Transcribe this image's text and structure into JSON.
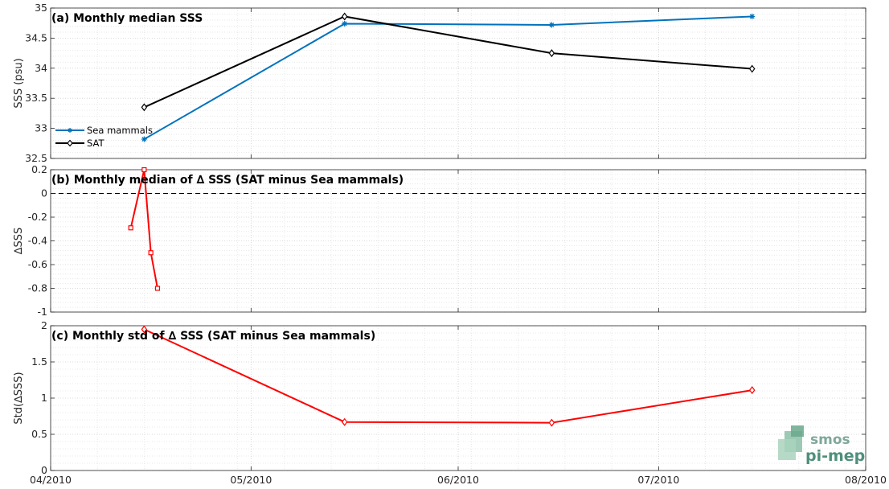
{
  "chart_data": [
    {
      "type": "line",
      "title": "(a) Monthly median SSS",
      "xlabel": "",
      "ylabel": "SSS (psu)",
      "ylim": [
        32.5,
        35
      ],
      "yticks": [
        "32.5",
        "33",
        "33.5",
        "34",
        "34.5",
        "35"
      ],
      "grid": true,
      "legend": "bottom-left",
      "series": [
        {
          "name": "Sea mammals",
          "color": "#0072bd",
          "marker": "star",
          "x": [
            "2010-04-15",
            "2010-05-15",
            "2010-06-15",
            "2010-07-15"
          ],
          "y": [
            32.82,
            34.74,
            34.72,
            34.86
          ]
        },
        {
          "name": "SAT",
          "color": "#000000",
          "marker": "diamond",
          "x": [
            "2010-04-15",
            "2010-05-15",
            "2010-06-15",
            "2010-07-15"
          ],
          "y": [
            33.35,
            34.86,
            34.25,
            33.99
          ]
        }
      ]
    },
    {
      "type": "line",
      "title": "(b) Monthly median of ∆ SSS (SAT minus Sea mammals)",
      "xlabel": "",
      "ylabel": "∆SSS",
      "ylim": [
        -1,
        0.2
      ],
      "yticks": [
        "-1",
        "-0.8",
        "-0.6",
        "-0.4",
        "-0.2",
        "0",
        "0.2"
      ],
      "reference_line": 0,
      "grid": true,
      "series": [
        {
          "color": "#ff0000",
          "marker": "square",
          "x": [
            "2010-04-13",
            "2010-04-15",
            "2010-04-16",
            "2010-04-17"
          ],
          "y": [
            -0.29,
            0.2,
            -0.5,
            -0.8
          ]
        }
      ]
    },
    {
      "type": "line",
      "title": "(c) Monthly std of ∆ SSS (SAT minus Sea mammals)",
      "xlabel": "",
      "ylabel": "Std(∆SSS)",
      "ylim": [
        0,
        2
      ],
      "yticks": [
        "0",
        "0.5",
        "1",
        "1.5",
        "2"
      ],
      "grid": true,
      "series": [
        {
          "color": "#ff0000",
          "marker": "diamond",
          "x": [
            "2010-04-15",
            "2010-05-15",
            "2010-06-15",
            "2010-07-15"
          ],
          "y": [
            1.95,
            0.67,
            0.66,
            1.11
          ]
        }
      ]
    }
  ],
  "xaxis": {
    "range": [
      "2010-04-01",
      "2010-08-01"
    ],
    "ticks": [
      "2010-04-01",
      "2010-05-01",
      "2010-06-01",
      "2010-07-01",
      "2010-08-01"
    ],
    "tick_labels": [
      "04/2010",
      "05/2010",
      "06/2010",
      "07/2010",
      "08/2010"
    ]
  },
  "logo": {
    "top": "smos",
    "bottom": "pi-mep"
  }
}
